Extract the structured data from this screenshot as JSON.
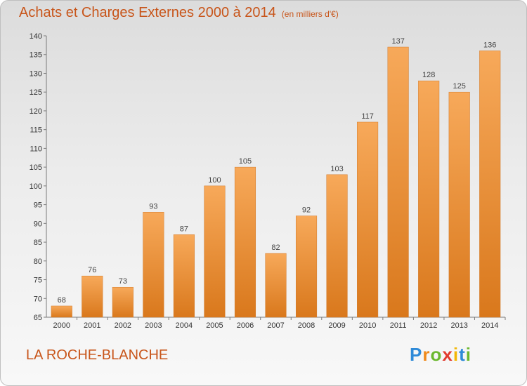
{
  "header": {
    "title": "Achats et Charges Externes 2000 à 2014",
    "unit_note": "(en milliers d'€)"
  },
  "footer": {
    "place": "LA ROCHE-BLANCHE",
    "brand": "Proxiti",
    "brand_letters": [
      "P",
      "r",
      "o",
      "x",
      "i",
      "t",
      "i"
    ]
  },
  "colors": {
    "title": "#c8551a",
    "bar_light": "#f7a95a",
    "bar_dark": "#d9781c"
  },
  "chart_data": {
    "type": "bar",
    "title": "Achats et Charges Externes 2000 à 2014",
    "subtitle": "(en milliers d'€)",
    "categories": [
      "2000",
      "2001",
      "2002",
      "2003",
      "2004",
      "2005",
      "2006",
      "2007",
      "2008",
      "2009",
      "2010",
      "2011",
      "2012",
      "2013",
      "2014"
    ],
    "values": [
      68,
      76,
      73,
      93,
      87,
      100,
      105,
      82,
      92,
      103,
      117,
      137,
      128,
      125,
      136
    ],
    "ylim": [
      65,
      140
    ],
    "yticks": [
      65,
      70,
      75,
      80,
      85,
      90,
      95,
      100,
      105,
      110,
      115,
      120,
      125,
      130,
      135,
      140
    ],
    "grid": false,
    "data_labels": true
  }
}
